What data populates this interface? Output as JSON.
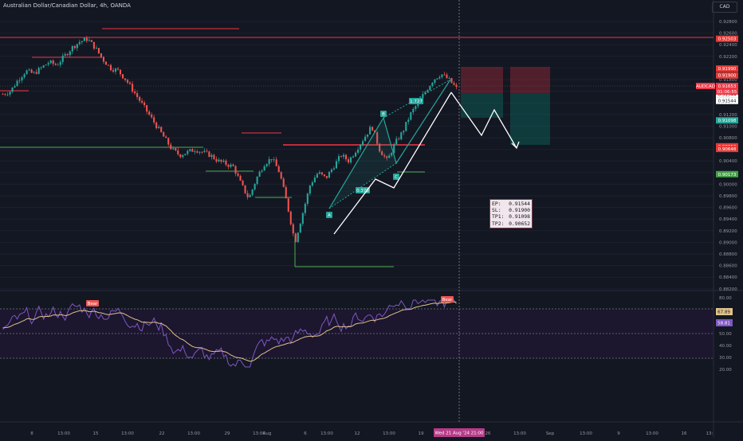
{
  "header": {
    "title": "Australian Dollar/Canadian Dollar, 4h, OANDA"
  },
  "currency": {
    "label": "CAD"
  },
  "symbol_tag": {
    "label": "AUDCAD",
    "price": "0.91653",
    "countdown": "01:06:55"
  },
  "price_axis": {
    "ticks": [
      "0.92800",
      "0.92600",
      "0.92400",
      "0.92200",
      "0.92000",
      "0.91800",
      "0.91600",
      "0.91400",
      "0.91200",
      "0.91000",
      "0.90800",
      "0.90600",
      "0.90400",
      "0.90200",
      "0.90000",
      "0.89800",
      "0.89600",
      "0.89400",
      "0.89200",
      "0.89000",
      "0.88800",
      "0.88600",
      "0.88400",
      "0.88200"
    ],
    "tags": [
      {
        "text": "0.92503",
        "color": "#e53935",
        "y": 0.92503
      },
      {
        "text": "0.91990",
        "color": "#e53935",
        "y": 0.9199
      },
      {
        "text": "0.91900",
        "color": "#e53935",
        "y": 0.919
      },
      {
        "text": "0.91544",
        "color": "#131722",
        "y": 0.91544
      },
      {
        "text": "0.91544",
        "color": "#131722",
        "y": 0.91544
      },
      {
        "text": "0.91098",
        "color": "#26a69a",
        "y": 0.91098
      },
      {
        "text": "0.90652",
        "color": "#e53935",
        "y": 0.90652
      },
      {
        "text": "0.90648",
        "color": "#e53935",
        "y": 0.90648
      },
      {
        "text": "0.90173",
        "color": "#43a047",
        "y": 0.90173
      }
    ]
  },
  "time_axis": {
    "ticks": [
      "8",
      "13:00",
      "15",
      "13:00",
      "22",
      "13:00",
      "29",
      "13:00",
      "Aug",
      "6",
      "13:00",
      "12",
      "13:00",
      "19",
      "26",
      "13:00",
      "Sep",
      "13:00",
      "9",
      "13:00",
      "16",
      "13:"
    ],
    "crosshair_label": "Wed 21 Aug '24  21:00"
  },
  "rsi": {
    "ticks": [
      "80.00",
      "70.00",
      "60.00",
      "50.00",
      "40.00",
      "30.00",
      "20.00"
    ],
    "value_tag": "67.89",
    "value_tag2": "58.81",
    "bear_labels": [
      "Bear",
      "Bear"
    ]
  },
  "harmonic": {
    "labels": [
      "A",
      "B",
      "C",
      "0.378",
      "1.727"
    ]
  },
  "trade_box": {
    "ep_label": "EP:",
    "ep_value": "0.91544",
    "sl_label": "SL:",
    "sl_value": "0.91900",
    "tp1_label": "TP1:",
    "tp1_value": "0.91098",
    "tp2_label": "TP2:",
    "tp2_value": "0.90652"
  },
  "colors": {
    "up": "#26a69a",
    "down": "#ef5350",
    "bg": "#131722",
    "resistance": "#f23645",
    "support": "#4caf50",
    "rsi": "#7e57c2"
  },
  "chart_data": {
    "type": "candlestick",
    "symbol": "AUDCAD",
    "timeframe": "4h",
    "ylim": [
      0.8818,
      0.9289
    ],
    "close_path": [
      0.9155,
      0.916,
      0.918,
      0.9195,
      0.919,
      0.92,
      0.921,
      0.9205,
      0.922,
      0.9235,
      0.9245,
      0.925,
      0.9235,
      0.9215,
      0.92,
      0.9195,
      0.918,
      0.916,
      0.914,
      0.912,
      0.91,
      0.908,
      0.906,
      0.905,
      0.9055,
      0.906,
      0.9055,
      0.905,
      0.904,
      0.9035,
      0.903,
      0.9,
      0.8975,
      0.901,
      0.9035,
      0.9045,
      0.902,
      0.8965,
      0.89,
      0.895,
      0.9,
      0.902,
      0.901,
      0.903,
      0.905,
      0.904,
      0.906,
      0.908,
      0.91,
      0.906,
      0.904,
      0.907,
      0.909,
      0.912,
      0.914,
      0.916,
      0.918,
      0.919,
      0.918,
      0.9165
    ],
    "levels": [
      {
        "name": "resistance",
        "value": 0.92503
      },
      {
        "name": "resistance-2",
        "value": 0.9205
      },
      {
        "name": "resistance-3",
        "value": 0.9075
      },
      {
        "name": "support",
        "value": 0.90515
      },
      {
        "name": "support-2",
        "value": 0.8857
      }
    ]
  }
}
